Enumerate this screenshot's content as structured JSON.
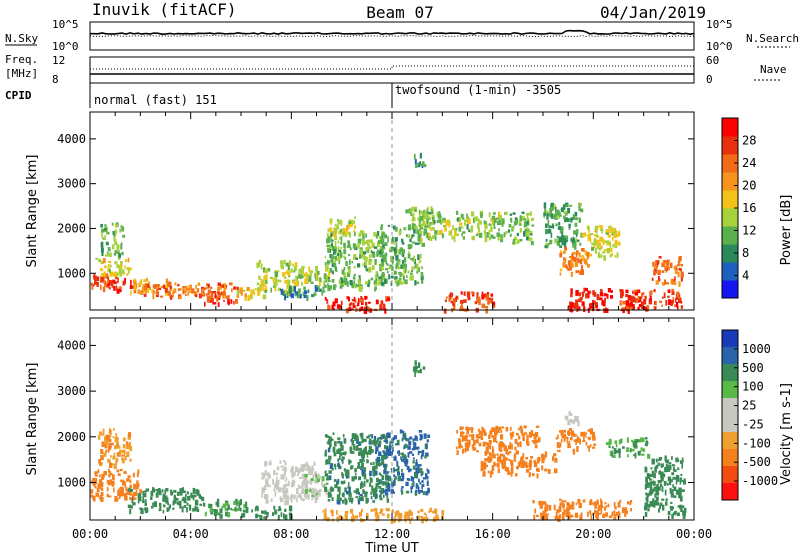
{
  "header": {
    "station": "Inuvik (fitACF)",
    "beam": "Beam 07",
    "date": "04/Jan/2019"
  },
  "top_panels": {
    "nsky_label": "N.Sky",
    "nsky_ticks": [
      "10^5",
      "10^0"
    ],
    "nsearch_label": "N.Search",
    "nsearch_ticks": [
      "10^5",
      "10^0"
    ],
    "freq_label_1": "Freq.",
    "freq_label_2": "[MHz]",
    "freq_ticks": [
      "12",
      "8"
    ],
    "nave_label": "Nave",
    "nave_ticks": [
      "60",
      "0"
    ],
    "cpid_label": "CPID",
    "cpid_modes": [
      {
        "name": "normal (fast) 151",
        "start_hour": 0
      },
      {
        "name": "twofsound (1-min) -3505",
        "start_hour": 12
      }
    ]
  },
  "time_axis": {
    "label": "Time UT",
    "ticks": [
      "00:00",
      "04:00",
      "08:00",
      "12:00",
      "16:00",
      "20:00",
      "00:00"
    ]
  },
  "colors": {
    "power": [
      "#1515f0",
      "#1f5fbe",
      "#2a8a5a",
      "#5bb04e",
      "#a8d23c",
      "#f2c218",
      "#f7941d",
      "#f26b16",
      "#e8300f",
      "#ff0000"
    ],
    "velocity": [
      "#ff1010",
      "#f24c10",
      "#f5801e",
      "#f0a030",
      "#c8c8c0",
      "#c8c8c0",
      "#58b848",
      "#3a8a55",
      "#2a64a8",
      "#1a3ab8"
    ]
  },
  "chart_data": [
    {
      "type": "heatmap",
      "title": "",
      "xlabel": "",
      "ylabel": "Slant Range [km]",
      "xlim": [
        0,
        24
      ],
      "ylim": [
        180,
        4600
      ],
      "yticks": [
        "1000",
        "2000",
        "3000",
        "4000"
      ],
      "colorbar_label": "Power [dB]",
      "colorbar_ticks": [
        "4",
        "8",
        "12",
        "16",
        "20",
        "24",
        "28"
      ],
      "colorbar_range": [
        0,
        32
      ],
      "regions": [
        {
          "t": [
            0.0,
            1.8
          ],
          "r": [
            650,
            1000
          ],
          "value": 27
        },
        {
          "t": [
            0.2,
            1.6
          ],
          "r": [
            1000,
            1350
          ],
          "value": 16
        },
        {
          "t": [
            0.4,
            1.3
          ],
          "r": [
            1400,
            2150
          ],
          "value": 12
        },
        {
          "t": [
            1.6,
            3.2
          ],
          "r": [
            600,
            900
          ],
          "value": 20
        },
        {
          "t": [
            2.0,
            6.0
          ],
          "r": [
            500,
            800
          ],
          "value": 24
        },
        {
          "t": [
            4.5,
            5.8
          ],
          "r": [
            350,
            550
          ],
          "value": 27
        },
        {
          "t": [
            5.8,
            7.0
          ],
          "r": [
            500,
            700
          ],
          "value": 18
        },
        {
          "t": [
            6.6,
            8.2
          ],
          "r": [
            600,
            1300
          ],
          "value": 15
        },
        {
          "t": [
            7.5,
            9.3
          ],
          "r": [
            500,
            750
          ],
          "value": 8
        },
        {
          "t": [
            8.0,
            9.5
          ],
          "r": [
            800,
            1200
          ],
          "value": 14
        },
        {
          "t": [
            9.3,
            11.8
          ],
          "r": [
            200,
            500
          ],
          "value": 28
        },
        {
          "t": [
            9.3,
            11.6
          ],
          "r": [
            700,
            2000
          ],
          "value": 12
        },
        {
          "t": [
            9.5,
            10.5
          ],
          "r": [
            1900,
            2300
          ],
          "value": 16
        },
        {
          "t": [
            11.5,
            13.2
          ],
          "r": [
            800,
            2100
          ],
          "value": 11
        },
        {
          "t": [
            12.5,
            13.6
          ],
          "r": [
            2000,
            2500
          ],
          "value": 13
        },
        {
          "t": [
            12.8,
            13.3
          ],
          "r": [
            3400,
            3700
          ],
          "value": 8
        },
        {
          "t": [
            13.0,
            16.5
          ],
          "r": [
            1800,
            2400
          ],
          "value": 13
        },
        {
          "t": [
            14.0,
            16.0
          ],
          "r": [
            200,
            600
          ],
          "value": 26
        },
        {
          "t": [
            16.6,
            17.6
          ],
          "r": [
            1700,
            2400
          ],
          "value": 12
        },
        {
          "t": [
            18.0,
            19.5
          ],
          "r": [
            1600,
            2600
          ],
          "value": 10
        },
        {
          "t": [
            18.6,
            19.8
          ],
          "r": [
            1000,
            1600
          ],
          "value": 22
        },
        {
          "t": [
            19.0,
            20.7
          ],
          "r": [
            200,
            700
          ],
          "value": 29
        },
        {
          "t": [
            19.5,
            21.0
          ],
          "r": [
            1400,
            2100
          ],
          "value": 16
        },
        {
          "t": [
            21.0,
            23.5
          ],
          "r": [
            200,
            650
          ],
          "value": 28
        },
        {
          "t": [
            22.3,
            23.5
          ],
          "r": [
            800,
            1400
          ],
          "value": 24
        }
      ]
    },
    {
      "type": "heatmap",
      "title": "",
      "xlabel": "Time UT",
      "ylabel": "Slant Range [km]",
      "xlim": [
        0,
        24
      ],
      "ylim": [
        180,
        4600
      ],
      "yticks": [
        "1000",
        "2000",
        "3000",
        "4000"
      ],
      "colorbar_label": "Velocity [m s-1]",
      "colorbar_ticks": [
        "-1000",
        "-500",
        "-100",
        "-25",
        "25",
        "100",
        "500",
        "1000"
      ],
      "regions": [
        {
          "t": [
            0.0,
            2.0
          ],
          "r": [
            650,
            1300
          ],
          "value": -250
        },
        {
          "t": [
            0.3,
            1.6
          ],
          "r": [
            1400,
            2200
          ],
          "value": -80
        },
        {
          "t": [
            1.5,
            4.5
          ],
          "r": [
            400,
            900
          ],
          "value": 180
        },
        {
          "t": [
            4.5,
            6.2
          ],
          "r": [
            300,
            650
          ],
          "value": 120
        },
        {
          "t": [
            6.4,
            8.0
          ],
          "r": [
            250,
            500
          ],
          "value": 300
        },
        {
          "t": [
            6.8,
            9.0
          ],
          "r": [
            600,
            1500
          ],
          "value": 0
        },
        {
          "t": [
            8.4,
            9.4
          ],
          "r": [
            700,
            1200
          ],
          "value": 15
        },
        {
          "t": [
            9.3,
            11.8
          ],
          "r": [
            600,
            2100
          ],
          "value": 400
        },
        {
          "t": [
            9.2,
            14.0
          ],
          "r": [
            200,
            450
          ],
          "value": -60
        },
        {
          "t": [
            11.6,
            13.4
          ],
          "r": [
            800,
            2200
          ],
          "value": 600
        },
        {
          "t": [
            12.8,
            13.3
          ],
          "r": [
            3400,
            3700
          ],
          "value": 150
        },
        {
          "t": [
            14.5,
            17.8
          ],
          "r": [
            1700,
            2250
          ],
          "value": -300
        },
        {
          "t": [
            15.5,
            18.5
          ],
          "r": [
            1200,
            1700
          ],
          "value": -250
        },
        {
          "t": [
            18.5,
            20.0
          ],
          "r": [
            1700,
            2200
          ],
          "value": -180
        },
        {
          "t": [
            18.8,
            19.4
          ],
          "r": [
            2300,
            2600
          ],
          "value": 0
        },
        {
          "t": [
            20.5,
            22.2
          ],
          "r": [
            1600,
            2000
          ],
          "value": 90
        },
        {
          "t": [
            17.5,
            21.5
          ],
          "r": [
            250,
            650
          ],
          "value": -350
        },
        {
          "t": [
            22.0,
            23.6
          ],
          "r": [
            300,
            1600
          ],
          "value": 200
        }
      ]
    }
  ]
}
